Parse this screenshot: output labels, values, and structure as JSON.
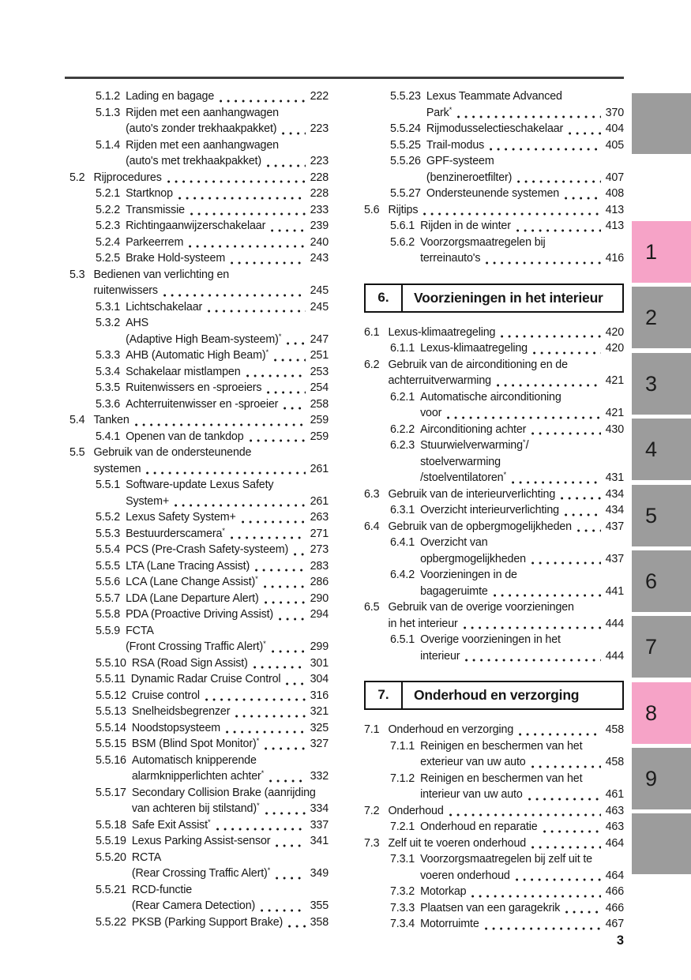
{
  "page": {
    "number": "3"
  },
  "colors": {
    "tab_default": "#9c9c9c",
    "tab_highlight": "#f6a3c7",
    "rule": "#3f3f3f",
    "text": "#161616"
  },
  "sidebar": {
    "top_block": {
      "label": ""
    },
    "bottom_block": {
      "label": ""
    },
    "tabs": [
      {
        "label": "1",
        "highlighted": true
      },
      {
        "label": "2",
        "highlighted": false
      },
      {
        "label": "3",
        "highlighted": false
      },
      {
        "label": "4",
        "highlighted": false
      },
      {
        "label": "5",
        "highlighted": false
      },
      {
        "label": "6",
        "highlighted": false
      },
      {
        "label": "7",
        "highlighted": false
      },
      {
        "label": "8",
        "highlighted": true
      },
      {
        "label": "9",
        "highlighted": false
      }
    ]
  },
  "toc": {
    "left_column": [
      {
        "type": "entry",
        "level": 2,
        "num": "5.1.2",
        "lines": [
          "Lading en bagage"
        ],
        "page": "222"
      },
      {
        "type": "entry",
        "level": 2,
        "num": "5.1.3",
        "lines": [
          "Rijden met een aanhangwagen",
          "(auto's zonder trekhaakpakket)"
        ],
        "page": "223"
      },
      {
        "type": "entry",
        "level": 2,
        "num": "5.1.4",
        "lines": [
          "Rijden met een aanhangwagen",
          "(auto's met trekhaakpakket)"
        ],
        "page": "223"
      },
      {
        "type": "entry",
        "level": 1,
        "num": "5.2",
        "lines": [
          "Rijprocedures"
        ],
        "page": "228"
      },
      {
        "type": "entry",
        "level": 2,
        "num": "5.2.1",
        "lines": [
          "Startknop"
        ],
        "page": "228"
      },
      {
        "type": "entry",
        "level": 2,
        "num": "5.2.2",
        "lines": [
          "Transmissie"
        ],
        "page": "233"
      },
      {
        "type": "entry",
        "level": 2,
        "num": "5.2.3",
        "lines": [
          "Richtingaanwijzerschakelaar"
        ],
        "page": "239"
      },
      {
        "type": "entry",
        "level": 2,
        "num": "5.2.4",
        "lines": [
          "Parkeerrem"
        ],
        "page": "240"
      },
      {
        "type": "entry",
        "level": 2,
        "num": "5.2.5",
        "lines": [
          "Brake Hold-systeem"
        ],
        "page": "243"
      },
      {
        "type": "entry",
        "level": 1,
        "num": "5.3",
        "lines": [
          "Bedienen van verlichting en",
          "ruitenwissers"
        ],
        "page": "245"
      },
      {
        "type": "entry",
        "level": 2,
        "num": "5.3.1",
        "lines": [
          "Lichtschakelaar"
        ],
        "page": "245"
      },
      {
        "type": "entry",
        "level": 2,
        "num": "5.3.2",
        "lines": [
          "AHS",
          "(Adaptive High Beam-systeem)*"
        ],
        "page": "247"
      },
      {
        "type": "entry",
        "level": 2,
        "num": "5.3.3",
        "lines": [
          "AHB (Automatic High Beam)*"
        ],
        "page": "251"
      },
      {
        "type": "entry",
        "level": 2,
        "num": "5.3.4",
        "lines": [
          "Schakelaar mistlampen"
        ],
        "page": "253"
      },
      {
        "type": "entry",
        "level": 2,
        "num": "5.3.5",
        "lines": [
          "Ruitenwissers en -sproeiers"
        ],
        "page": "254"
      },
      {
        "type": "entry",
        "level": 2,
        "num": "5.3.6",
        "lines": [
          "Achterruitenwisser en -sproeier"
        ],
        "page": "258"
      },
      {
        "type": "entry",
        "level": 1,
        "num": "5.4",
        "lines": [
          "Tanken"
        ],
        "page": "259"
      },
      {
        "type": "entry",
        "level": 2,
        "num": "5.4.1",
        "lines": [
          "Openen van de tankdop"
        ],
        "page": "259"
      },
      {
        "type": "entry",
        "level": 1,
        "num": "5.5",
        "lines": [
          "Gebruik van de ondersteunende",
          "systemen"
        ],
        "page": "261"
      },
      {
        "type": "entry",
        "level": 2,
        "num": "5.5.1",
        "lines": [
          "Software-update Lexus Safety",
          "System+"
        ],
        "page": "261"
      },
      {
        "type": "entry",
        "level": 2,
        "num": "5.5.2",
        "lines": [
          "Lexus Safety System+"
        ],
        "page": "263"
      },
      {
        "type": "entry",
        "level": 2,
        "num": "5.5.3",
        "lines": [
          "Bestuurderscamera*"
        ],
        "page": "271"
      },
      {
        "type": "entry",
        "level": 2,
        "num": "5.5.4",
        "lines": [
          "PCS (Pre-Crash Safety-systeem)"
        ],
        "page": "273"
      },
      {
        "type": "entry",
        "level": 2,
        "num": "5.5.5",
        "lines": [
          "LTA (Lane Tracing Assist)"
        ],
        "page": "283"
      },
      {
        "type": "entry",
        "level": 2,
        "num": "5.5.6",
        "lines": [
          "LCA (Lane Change Assist)*"
        ],
        "page": "286"
      },
      {
        "type": "entry",
        "level": 2,
        "num": "5.5.7",
        "lines": [
          "LDA (Lane Departure Alert)"
        ],
        "page": "290"
      },
      {
        "type": "entry",
        "level": 2,
        "num": "5.5.8",
        "lines": [
          "PDA (Proactive Driving Assist)"
        ],
        "page": "294"
      },
      {
        "type": "entry",
        "level": 2,
        "num": "5.5.9",
        "lines": [
          "FCTA",
          "(Front Crossing Traffic Alert)*"
        ],
        "page": "299"
      },
      {
        "type": "entry",
        "level": 2,
        "num": "5.5.10",
        "lines": [
          "RSA (Road Sign Assist)"
        ],
        "page": "301"
      },
      {
        "type": "entry",
        "level": 2,
        "num": "5.5.11",
        "lines": [
          "Dynamic Radar Cruise Control"
        ],
        "page": "304"
      },
      {
        "type": "entry",
        "level": 2,
        "num": "5.5.12",
        "lines": [
          "Cruise control"
        ],
        "page": "316"
      },
      {
        "type": "entry",
        "level": 2,
        "num": "5.5.13",
        "lines": [
          "Snelheidsbegrenzer"
        ],
        "page": "321"
      },
      {
        "type": "entry",
        "level": 2,
        "num": "5.5.14",
        "lines": [
          "Noodstopsysteem"
        ],
        "page": "325"
      },
      {
        "type": "entry",
        "level": 2,
        "num": "5.5.15",
        "lines": [
          "BSM (Blind Spot Monitor)*"
        ],
        "page": "327"
      },
      {
        "type": "entry",
        "level": 2,
        "num": "5.5.16",
        "lines": [
          "Automatisch knipperende",
          "alarmknipperlichten achter*"
        ],
        "page": "332"
      },
      {
        "type": "entry",
        "level": 2,
        "num": "5.5.17",
        "lines": [
          "Secondary Collision Brake (aanrijding",
          "van achteren bij stilstand)*"
        ],
        "page": "334"
      },
      {
        "type": "entry",
        "level": 2,
        "num": "5.5.18",
        "lines": [
          "Safe Exit Assist*"
        ],
        "page": "337"
      },
      {
        "type": "entry",
        "level": 2,
        "num": "5.5.19",
        "lines": [
          "Lexus Parking Assist-sensor"
        ],
        "page": "341"
      },
      {
        "type": "entry",
        "level": 2,
        "num": "5.5.20",
        "lines": [
          "RCTA",
          "(Rear Crossing Traffic Alert)*"
        ],
        "page": "349"
      },
      {
        "type": "entry",
        "level": 2,
        "num": "5.5.21",
        "lines": [
          "RCD-functie",
          "(Rear Camera Detection)"
        ],
        "page": "355"
      },
      {
        "type": "entry",
        "level": 2,
        "num": "5.5.22",
        "lines": [
          "PKSB (Parking Support Brake)"
        ],
        "page": "358"
      }
    ],
    "right_column": [
      {
        "type": "entry",
        "level": 2,
        "num": "5.5.23",
        "lines": [
          "Lexus Teammate Advanced",
          "Park*"
        ],
        "page": "370"
      },
      {
        "type": "entry",
        "level": 2,
        "num": "5.5.24",
        "lines": [
          "Rijmodusselectieschakelaar"
        ],
        "page": "404"
      },
      {
        "type": "entry",
        "level": 2,
        "num": "5.5.25",
        "lines": [
          "Trail-modus"
        ],
        "page": "405"
      },
      {
        "type": "entry",
        "level": 2,
        "num": "5.5.26",
        "lines": [
          "GPF-systeem",
          "(benzineroetfilter)"
        ],
        "page": "407"
      },
      {
        "type": "entry",
        "level": 2,
        "num": "5.5.27",
        "lines": [
          "Ondersteunende systemen"
        ],
        "page": "408"
      },
      {
        "type": "entry",
        "level": 1,
        "num": "5.6",
        "lines": [
          "Rijtips"
        ],
        "page": "413"
      },
      {
        "type": "entry",
        "level": 2,
        "num": "5.6.1",
        "lines": [
          "Rijden in de winter"
        ],
        "page": "413"
      },
      {
        "type": "entry",
        "level": 2,
        "num": "5.6.2",
        "lines": [
          "Voorzorgsmaatregelen bij",
          "terreinauto's"
        ],
        "page": "416"
      },
      {
        "type": "section",
        "num": "6.",
        "title": "Voorzieningen in het interieur"
      },
      {
        "type": "entry",
        "level": 1,
        "num": "6.1",
        "lines": [
          "Lexus-klimaatregeling"
        ],
        "page": "420"
      },
      {
        "type": "entry",
        "level": 2,
        "num": "6.1.1",
        "lines": [
          "Lexus-klimaatregeling"
        ],
        "page": "420"
      },
      {
        "type": "entry",
        "level": 1,
        "num": "6.2",
        "lines": [
          "Gebruik van de airconditioning en de",
          "achterruitverwarming"
        ],
        "page": "421"
      },
      {
        "type": "entry",
        "level": 2,
        "num": "6.2.1",
        "lines": [
          "Automatische airconditioning",
          "voor"
        ],
        "page": "421"
      },
      {
        "type": "entry",
        "level": 2,
        "num": "6.2.2",
        "lines": [
          "Airconditioning achter"
        ],
        "page": "430"
      },
      {
        "type": "entry",
        "level": 2,
        "num": "6.2.3",
        "lines": [
          "Stuurwielverwarming*/",
          "stoelverwarming",
          "/stoelventilatoren*"
        ],
        "page": "431"
      },
      {
        "type": "entry",
        "level": 1,
        "num": "6.3",
        "lines": [
          "Gebruik van de interieurverlichting"
        ],
        "page": "434"
      },
      {
        "type": "entry",
        "level": 2,
        "num": "6.3.1",
        "lines": [
          "Overzicht interieurverlichting"
        ],
        "page": "434"
      },
      {
        "type": "entry",
        "level": 1,
        "num": "6.4",
        "lines": [
          "Gebruik van de opbergmogelijkheden"
        ],
        "page": "437"
      },
      {
        "type": "entry",
        "level": 2,
        "num": "6.4.1",
        "lines": [
          "Overzicht van",
          "opbergmogelijkheden"
        ],
        "page": "437"
      },
      {
        "type": "entry",
        "level": 2,
        "num": "6.4.2",
        "lines": [
          "Voorzieningen in de",
          "bagageruimte"
        ],
        "page": "441"
      },
      {
        "type": "entry",
        "level": 1,
        "num": "6.5",
        "lines": [
          "Gebruik van de overige voorzieningen",
          "in het interieur"
        ],
        "page": "444"
      },
      {
        "type": "entry",
        "level": 2,
        "num": "6.5.1",
        "lines": [
          "Overige voorzieningen in het",
          "interieur"
        ],
        "page": "444"
      },
      {
        "type": "section",
        "num": "7.",
        "title": "Onderhoud en verzorging"
      },
      {
        "type": "entry",
        "level": 1,
        "num": "7.1",
        "lines": [
          "Onderhoud en verzorging"
        ],
        "page": "458"
      },
      {
        "type": "entry",
        "level": 2,
        "num": "7.1.1",
        "lines": [
          "Reinigen en beschermen van het",
          "exterieur van uw auto"
        ],
        "page": "458"
      },
      {
        "type": "entry",
        "level": 2,
        "num": "7.1.2",
        "lines": [
          "Reinigen en beschermen van het",
          "interieur van uw auto"
        ],
        "page": "461"
      },
      {
        "type": "entry",
        "level": 1,
        "num": "7.2",
        "lines": [
          "Onderhoud"
        ],
        "page": "463"
      },
      {
        "type": "entry",
        "level": 2,
        "num": "7.2.1",
        "lines": [
          "Onderhoud en reparatie"
        ],
        "page": "463"
      },
      {
        "type": "entry",
        "level": 1,
        "num": "7.3",
        "lines": [
          "Zelf uit te voeren onderhoud"
        ],
        "page": "464"
      },
      {
        "type": "entry",
        "level": 2,
        "num": "7.3.1",
        "lines": [
          "Voorzorgsmaatregelen bij zelf uit te",
          "voeren onderhoud"
        ],
        "page": "464"
      },
      {
        "type": "entry",
        "level": 2,
        "num": "7.3.2",
        "lines": [
          "Motorkap"
        ],
        "page": "466"
      },
      {
        "type": "entry",
        "level": 2,
        "num": "7.3.3",
        "lines": [
          "Plaatsen van een garagekrik"
        ],
        "page": "466"
      },
      {
        "type": "entry",
        "level": 2,
        "num": "7.3.4",
        "lines": [
          "Motorruimte"
        ],
        "page": "467"
      }
    ]
  }
}
